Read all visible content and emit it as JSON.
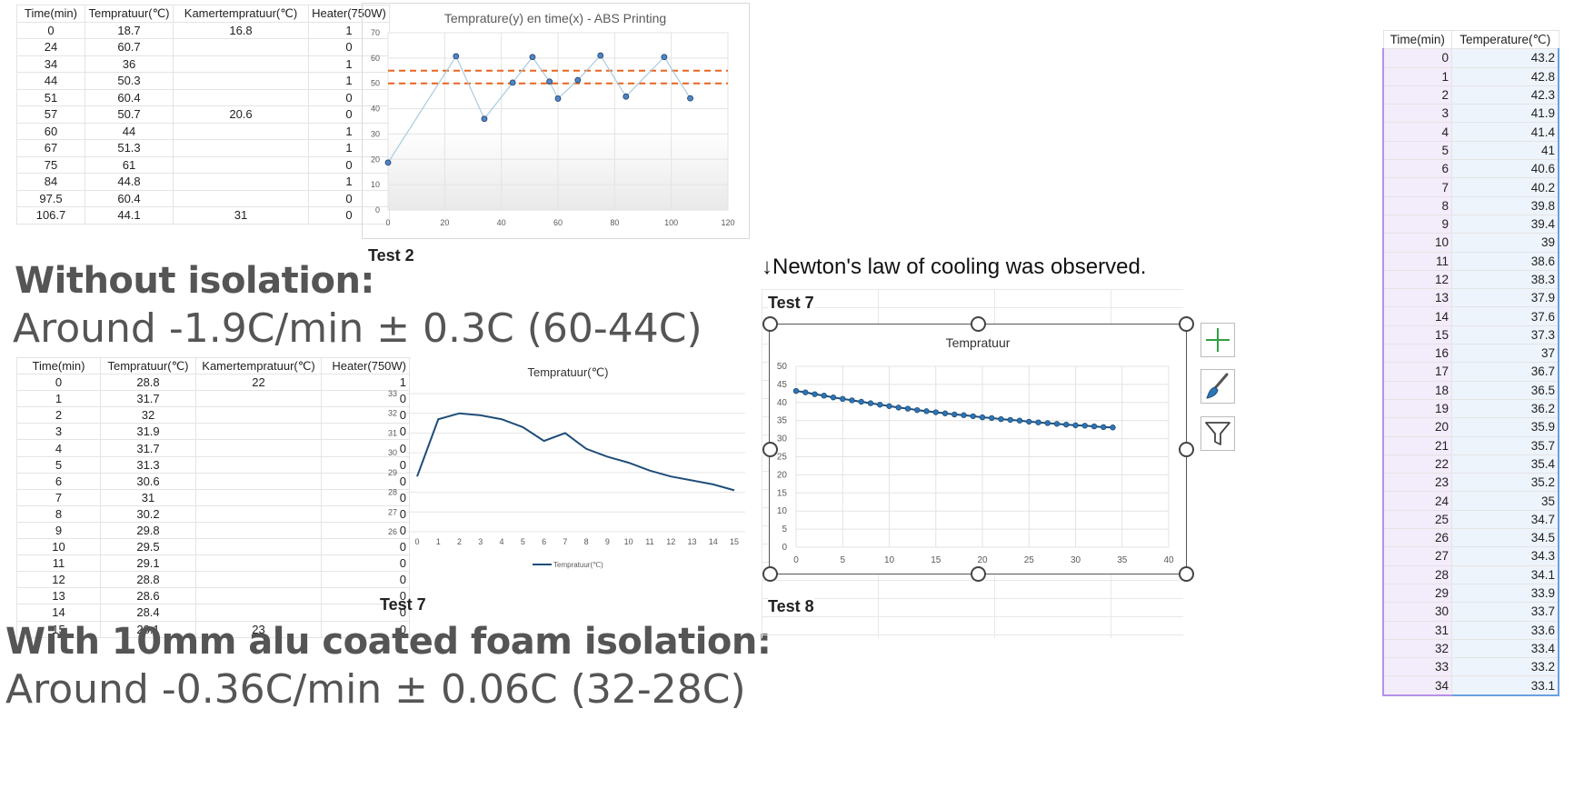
{
  "table1": {
    "headers": [
      "Time(min)",
      "Tempratuur(℃)",
      "Kamertempratuur(℃)",
      "Heater(750W)"
    ],
    "rows": [
      [
        "0",
        "18.7",
        "16.8",
        "1"
      ],
      [
        "24",
        "60.7",
        "",
        "0"
      ],
      [
        "34",
        "36",
        "",
        "1"
      ],
      [
        "44",
        "50.3",
        "",
        "1"
      ],
      [
        "51",
        "60.4",
        "",
        "0"
      ],
      [
        "57",
        "50.7",
        "20.6",
        "0"
      ],
      [
        "60",
        "44",
        "",
        "1"
      ],
      [
        "67",
        "51.3",
        "",
        "1"
      ],
      [
        "75",
        "61",
        "",
        "0"
      ],
      [
        "84",
        "44.8",
        "",
        "1"
      ],
      [
        "97.5",
        "60.4",
        "",
        "0"
      ],
      [
        "106.7",
        "44.1",
        "31",
        "0"
      ]
    ]
  },
  "table2": {
    "headers": [
      "Time(min)",
      "Tempratuur(℃)",
      "Kamertempratuur(℃)",
      "Heater(750W)"
    ],
    "rows": [
      [
        "0",
        "28.8",
        "22",
        "1"
      ],
      [
        "1",
        "31.7",
        "",
        "0"
      ],
      [
        "2",
        "32",
        "",
        "0"
      ],
      [
        "3",
        "31.9",
        "",
        "0"
      ],
      [
        "4",
        "31.7",
        "",
        "0"
      ],
      [
        "5",
        "31.3",
        "",
        "0"
      ],
      [
        "6",
        "30.6",
        "",
        "0"
      ],
      [
        "7",
        "31",
        "",
        "0"
      ],
      [
        "8",
        "30.2",
        "",
        "0"
      ],
      [
        "9",
        "29.8",
        "",
        "0"
      ],
      [
        "10",
        "29.5",
        "",
        "0"
      ],
      [
        "11",
        "29.1",
        "",
        "0"
      ],
      [
        "12",
        "28.8",
        "",
        "0"
      ],
      [
        "13",
        "28.6",
        "",
        "0"
      ],
      [
        "14",
        "28.4",
        "",
        "0"
      ],
      [
        "15",
        "28.1",
        "23",
        "0"
      ]
    ]
  },
  "table3": {
    "headers": [
      "Time(min)",
      "Temperature(℃)"
    ],
    "rows": [
      [
        "0",
        "43.2"
      ],
      [
        "1",
        "42.8"
      ],
      [
        "2",
        "42.3"
      ],
      [
        "3",
        "41.9"
      ],
      [
        "4",
        "41.4"
      ],
      [
        "5",
        "41"
      ],
      [
        "6",
        "40.6"
      ],
      [
        "7",
        "40.2"
      ],
      [
        "8",
        "39.8"
      ],
      [
        "9",
        "39.4"
      ],
      [
        "10",
        "39"
      ],
      [
        "11",
        "38.6"
      ],
      [
        "12",
        "38.3"
      ],
      [
        "13",
        "37.9"
      ],
      [
        "14",
        "37.6"
      ],
      [
        "15",
        "37.3"
      ],
      [
        "16",
        "37"
      ],
      [
        "17",
        "36.7"
      ],
      [
        "18",
        "36.5"
      ],
      [
        "19",
        "36.2"
      ],
      [
        "20",
        "35.9"
      ],
      [
        "21",
        "35.7"
      ],
      [
        "22",
        "35.4"
      ],
      [
        "23",
        "35.2"
      ],
      [
        "24",
        "35"
      ],
      [
        "25",
        "34.7"
      ],
      [
        "26",
        "34.5"
      ],
      [
        "27",
        "34.3"
      ],
      [
        "28",
        "34.1"
      ],
      [
        "29",
        "33.9"
      ],
      [
        "30",
        "33.7"
      ],
      [
        "31",
        "33.6"
      ],
      [
        "32",
        "33.4"
      ],
      [
        "33",
        "33.2"
      ],
      [
        "34",
        "33.1"
      ]
    ]
  },
  "labels": {
    "test2": "Test 2",
    "test7_top": "Test 7",
    "test7_left": "Test 7",
    "test8": "Test 8",
    "newton": "↓Newton's law of cooling was observed.",
    "without_title": "Without isolation:",
    "without_rate": "Around -1.9C/min ± 0.3C (60-44C)",
    "with_title": "With 10mm alu coated foam isolation:",
    "with_rate": "Around -0.36C/min ± 0.06C (32-28C)"
  },
  "icons": [
    "plus-icon",
    "brush-icon",
    "filter-icon"
  ],
  "colors": {
    "scatter_line": "#a9cbe0",
    "marker_fill": "#4f86c6",
    "threshold": "#e8651f",
    "line_dark": "#1f4e79",
    "cooling_line": "#1f4e79",
    "cooling_marker": "#2e75b6",
    "plus_green": "#2ea043"
  },
  "chart_data": [
    {
      "id": "abs",
      "type": "scatter",
      "title": "Temprature(y) en time(x) - ABS Printing",
      "x": [
        0,
        24,
        34,
        44,
        51,
        57,
        60,
        67,
        75,
        84,
        97.5,
        106.7
      ],
      "y": [
        18.7,
        60.7,
        36,
        50.3,
        60.4,
        50.7,
        44,
        51.3,
        61,
        44.8,
        60.4,
        44.1
      ],
      "reference_lines": [
        55,
        50
      ],
      "xlim": [
        0,
        120
      ],
      "ylim": [
        0,
        70
      ],
      "xticks": [
        0,
        20,
        40,
        60,
        80,
        100,
        120
      ],
      "yticks": [
        0,
        10,
        20,
        30,
        40,
        50,
        60,
        70
      ],
      "xlabel": "",
      "ylabel": "",
      "grid": true
    },
    {
      "id": "iso",
      "type": "line",
      "title": "Tempratuur(℃)",
      "x": [
        0,
        1,
        2,
        3,
        4,
        5,
        6,
        7,
        8,
        9,
        10,
        11,
        12,
        13,
        14,
        15
      ],
      "series": [
        {
          "name": "Tempratuur(℃)",
          "values": [
            28.8,
            31.7,
            32,
            31.9,
            31.7,
            31.3,
            30.6,
            31,
            30.2,
            29.8,
            29.5,
            29.1,
            28.8,
            28.6,
            28.4,
            28.1
          ]
        }
      ],
      "xlim": [
        0,
        15
      ],
      "ylim": [
        26,
        33
      ],
      "xticks": [
        0,
        1,
        2,
        3,
        4,
        5,
        6,
        7,
        8,
        9,
        10,
        11,
        12,
        13,
        14,
        15
      ],
      "yticks": [
        26,
        27,
        28,
        29,
        30,
        31,
        32,
        33
      ],
      "legend": "bottom",
      "grid": true
    },
    {
      "id": "cool",
      "type": "line",
      "title": "Tempratuur",
      "x": [
        0,
        1,
        2,
        3,
        4,
        5,
        6,
        7,
        8,
        9,
        10,
        11,
        12,
        13,
        14,
        15,
        16,
        17,
        18,
        19,
        20,
        21,
        22,
        23,
        24,
        25,
        26,
        27,
        28,
        29,
        30,
        31,
        32,
        33,
        34
      ],
      "y": [
        43.2,
        42.8,
        42.3,
        41.9,
        41.4,
        41,
        40.6,
        40.2,
        39.8,
        39.4,
        39,
        38.6,
        38.3,
        37.9,
        37.6,
        37.3,
        37,
        36.7,
        36.5,
        36.2,
        35.9,
        35.7,
        35.4,
        35.2,
        35,
        34.7,
        34.5,
        34.3,
        34.1,
        33.9,
        33.7,
        33.6,
        33.4,
        33.2,
        33.1
      ],
      "xlim": [
        0,
        40
      ],
      "ylim": [
        0,
        50
      ],
      "xticks": [
        0,
        5,
        10,
        15,
        20,
        25,
        30,
        35,
        40
      ],
      "yticks": [
        0,
        5,
        10,
        15,
        20,
        25,
        30,
        35,
        40,
        45,
        50
      ],
      "grid": true,
      "markers": true
    }
  ]
}
